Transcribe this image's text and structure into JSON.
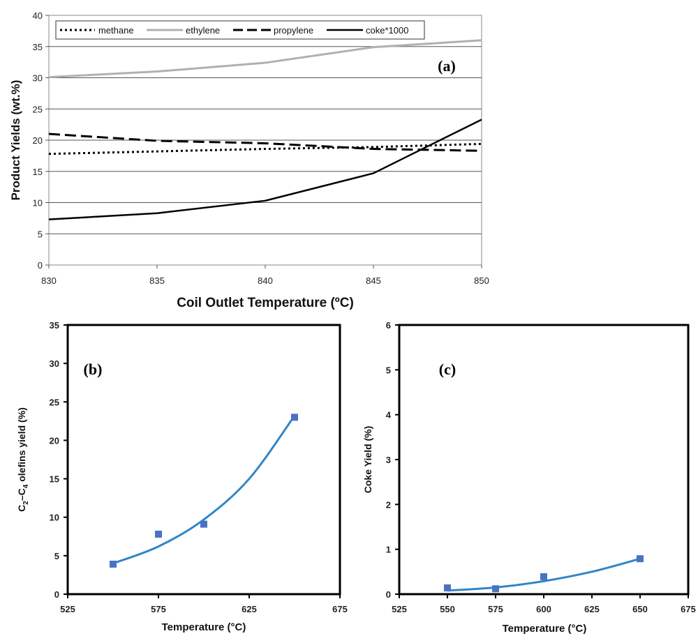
{
  "chart_data": [
    {
      "type": "line",
      "panel_label": "(a)",
      "xlabel": "Coil Outlet Temperature (ºC)",
      "ylabel": "Product Yields (wt.%)",
      "xlim": [
        830,
        850
      ],
      "ylim": [
        0,
        40
      ],
      "x_ticks": [
        "830",
        "835",
        "840",
        "845",
        "850"
      ],
      "y_ticks": [
        "0",
        "5",
        "10",
        "15",
        "20",
        "25",
        "30",
        "35",
        "40"
      ],
      "grid": "horizontal",
      "legend_position": "top",
      "x": [
        830,
        835,
        840,
        845,
        850
      ],
      "series": [
        {
          "name": "methane",
          "style": "dotted",
          "color": "#000000",
          "values": [
            17.8,
            18.2,
            18.6,
            18.9,
            19.4
          ]
        },
        {
          "name": "ethylene",
          "style": "solid-light",
          "color": "#b0b0b0",
          "values": [
            30.1,
            31.0,
            32.4,
            34.9,
            36.0
          ]
        },
        {
          "name": "propylene",
          "style": "dashed",
          "color": "#000000",
          "values": [
            21.0,
            19.9,
            19.5,
            18.6,
            18.3
          ]
        },
        {
          "name": "coke*1000",
          "style": "solid",
          "color": "#000000",
          "values": [
            7.3,
            8.3,
            10.3,
            14.7,
            23.3
          ]
        }
      ]
    },
    {
      "type": "scatter",
      "panel_label": "(b)",
      "xlabel": "Temperature (°C)",
      "ylabel_parts": [
        "C",
        "2",
        "–C",
        "4",
        " olefins yield (%)"
      ],
      "xlim": [
        525,
        675
      ],
      "ylim": [
        0,
        35
      ],
      "x_ticks": [
        "525",
        "575",
        "625",
        "675"
      ],
      "y_ticks": [
        "0",
        "5",
        "10",
        "15",
        "20",
        "25",
        "30",
        "35"
      ],
      "marker_color": "#4a72c4",
      "fit_color": "#2f86c8",
      "points": [
        [
          550,
          3.9
        ],
        [
          575,
          7.8
        ],
        [
          600,
          9.1
        ],
        [
          650,
          23.0
        ]
      ],
      "fit": [
        [
          550,
          4.0
        ],
        [
          575,
          6.2
        ],
        [
          600,
          9.7
        ],
        [
          625,
          15.0
        ],
        [
          650,
          23.2
        ]
      ]
    },
    {
      "type": "scatter",
      "panel_label": "(c)",
      "xlabel": "Temperature (°C)",
      "ylabel": "Coke Yield (%)",
      "xlim": [
        525,
        675
      ],
      "ylim": [
        0,
        6
      ],
      "x_ticks": [
        "525",
        "550",
        "575",
        "600",
        "625",
        "650",
        "675"
      ],
      "y_ticks": [
        "0",
        "1",
        "2",
        "3",
        "4",
        "5",
        "6"
      ],
      "marker_color": "#4a72c4",
      "fit_color": "#2f86c8",
      "points": [
        [
          550,
          0.14
        ],
        [
          575,
          0.12
        ],
        [
          600,
          0.39
        ],
        [
          650,
          0.79
        ]
      ],
      "fit": [
        [
          550,
          0.08
        ],
        [
          575,
          0.15
        ],
        [
          600,
          0.29
        ],
        [
          625,
          0.5
        ],
        [
          650,
          0.79
        ]
      ]
    }
  ]
}
